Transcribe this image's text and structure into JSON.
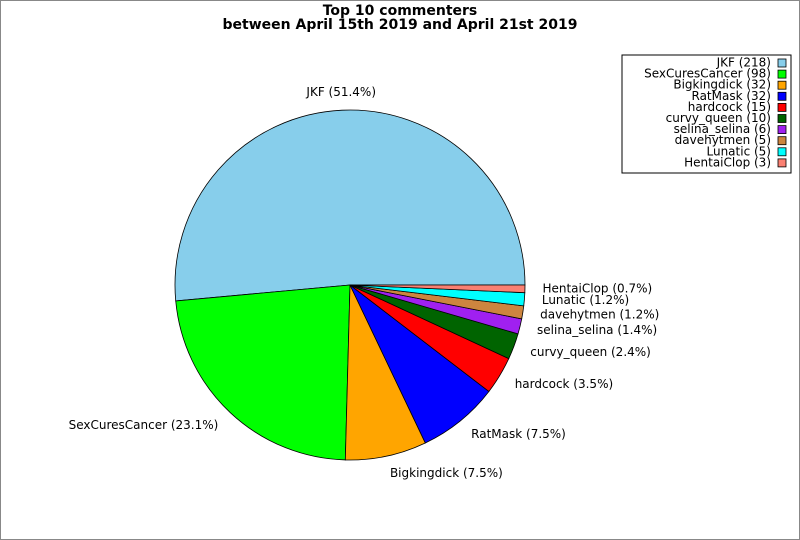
{
  "chart_data": {
    "type": "pie",
    "title": "Top 10 commenters",
    "subtitle": "between April 15th 2019 and April 21st 2019",
    "categories": [
      "JKF",
      "SexCuresCancer",
      "Bigkingdick",
      "RatMask",
      "hardcock",
      "curvy_queen",
      "selina_selina",
      "davehytmen",
      "Lunatic",
      "HentaiClop"
    ],
    "values": [
      51.4,
      23.1,
      7.5,
      7.5,
      3.5,
      2.4,
      1.4,
      1.2,
      1.2,
      0.7
    ],
    "value_labels": [
      "JKF (51.4%)",
      "SexCuresCancer (23.1%)",
      "Bigkingdick (7.5%)",
      "RatMask (7.5%)",
      "hardcock (3.5%)",
      "curvy_queen (2.4%)",
      "selina_selina (1.4%)",
      "davehytmen (1.2%)",
      "Lunatic (1.2%)",
      "HentaiClop (0.7%)"
    ],
    "colors": [
      "#87ceeb",
      "#00ff00",
      "#ffa500",
      "#0000ff",
      "#ff0000",
      "#006400",
      "#a020f0",
      "#cd853f",
      "#00ffff",
      "#fa8072"
    ],
    "legend": {
      "position": "upper right",
      "labels": [
        "JKF (218)",
        "SexCuresCancer (98)",
        "Bigkingdick (32)",
        "RatMask (32)",
        "hardcock (15)",
        "curvy_queen (10)",
        "selina_selina (6)",
        "davehytmen (5)",
        "Lunatic (5)",
        "HentaiClop (3)"
      ]
    }
  }
}
